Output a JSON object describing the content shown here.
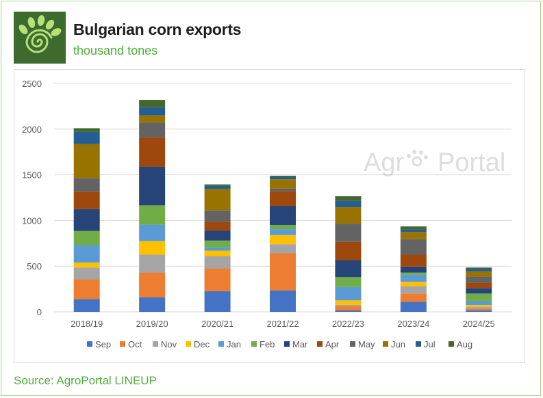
{
  "header": {
    "title": "Bulgarian corn exports",
    "subtitle": "thousand tones"
  },
  "footer": {
    "source": "Source: AgroPortal LINEUP"
  },
  "watermark": {
    "text_left": "Agr",
    "text_right": "Portal"
  },
  "chart_data": {
    "type": "bar",
    "stacked": true,
    "title": "Bulgarian corn exports",
    "subtitle": "thousand tones",
    "xlabel": "",
    "ylabel": "",
    "ylim": [
      0,
      2500
    ],
    "yticks": [
      0,
      500,
      1000,
      1500,
      2000,
      2500
    ],
    "grid": true,
    "legend_position": "bottom",
    "categories": [
      "2018/19",
      "2019/20",
      "2020/21",
      "2021/22",
      "2022/23",
      "2023/24",
      "2024/25"
    ],
    "series": [
      {
        "name": "Sep",
        "color": "#4472c4",
        "values": [
          140,
          160,
          225,
          235,
          15,
          110,
          15
        ]
      },
      {
        "name": "Oct",
        "color": "#ed7d31",
        "values": [
          215,
          270,
          250,
          405,
          45,
          90,
          20
        ]
      },
      {
        "name": "Nov",
        "color": "#a5a5a5",
        "values": [
          130,
          195,
          135,
          100,
          15,
          80,
          20
        ]
      },
      {
        "name": "Dec",
        "color": "#ffc000",
        "values": [
          55,
          150,
          60,
          100,
          50,
          50,
          20
        ]
      },
      {
        "name": "Jan",
        "color": "#5b9bd5",
        "values": [
          190,
          180,
          35,
          65,
          145,
          75,
          45
        ]
      },
      {
        "name": "Feb",
        "color": "#70ad47",
        "values": [
          155,
          210,
          75,
          45,
          110,
          25,
          80
        ]
      },
      {
        "name": "Mar",
        "color": "#264478",
        "values": [
          240,
          425,
          110,
          210,
          185,
          65,
          60
        ]
      },
      {
        "name": "Apr",
        "color": "#9e480e",
        "values": [
          190,
          320,
          95,
          160,
          200,
          130,
          55
        ]
      },
      {
        "name": "May",
        "color": "#636363",
        "values": [
          150,
          160,
          125,
          30,
          200,
          170,
          70
        ]
      },
      {
        "name": "Jun",
        "color": "#997300",
        "values": [
          370,
          80,
          235,
          100,
          180,
          80,
          60
        ]
      },
      {
        "name": "Jul",
        "color": "#255e91",
        "values": [
          135,
          90,
          35,
          25,
          70,
          30,
          30
        ]
      },
      {
        "name": "Aug",
        "color": "#43682b",
        "values": [
          40,
          80,
          15,
          15,
          50,
          30,
          10
        ]
      }
    ]
  }
}
